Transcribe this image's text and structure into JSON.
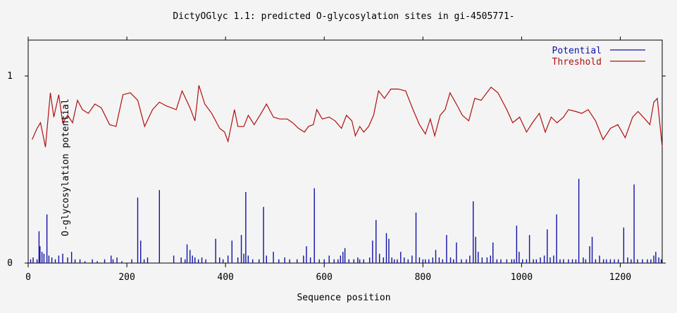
{
  "chart_data": {
    "type": "line",
    "title": "DictyOGlyc 1.1: predicted O-glycosylation sites in gi-4505771-",
    "xlabel": "Sequence position",
    "ylabel": "O-glycosylation potential",
    "xlim": [
      0,
      1285
    ],
    "ylim": [
      0,
      1.2
    ],
    "x_ticks": [
      0,
      200,
      400,
      600,
      800,
      1000,
      1200
    ],
    "x_tick_labels": [
      "0",
      "200",
      "400",
      "600",
      "800",
      "1000",
      "1200"
    ],
    "y_ticks": [
      0,
      1
    ],
    "y_tick_labels": [
      "0",
      "1"
    ],
    "grid": false,
    "legend_position": "top-right",
    "series": [
      {
        "name": "Potential",
        "kind": "impulses",
        "color": "#1010a8",
        "points": [
          [
            5,
            0.02
          ],
          [
            10,
            0.03
          ],
          [
            18,
            0.02
          ],
          [
            22,
            0.17
          ],
          [
            24,
            0.09
          ],
          [
            28,
            0.06
          ],
          [
            32,
            0.05
          ],
          [
            38,
            0.26
          ],
          [
            42,
            0.04
          ],
          [
            48,
            0.03
          ],
          [
            55,
            0.02
          ],
          [
            62,
            0.04
          ],
          [
            70,
            0.05
          ],
          [
            80,
            0.03
          ],
          [
            88,
            0.06
          ],
          [
            95,
            0.02
          ],
          [
            105,
            0.02
          ],
          [
            115,
            0.01
          ],
          [
            130,
            0.02
          ],
          [
            140,
            0.01
          ],
          [
            155,
            0.02
          ],
          [
            168,
            0.04
          ],
          [
            172,
            0.02
          ],
          [
            180,
            0.03
          ],
          [
            190,
            0.01
          ],
          [
            210,
            0.02
          ],
          [
            222,
            0.35
          ],
          [
            228,
            0.12
          ],
          [
            235,
            0.02
          ],
          [
            242,
            0.03
          ],
          [
            266,
            0.39
          ],
          [
            295,
            0.04
          ],
          [
            310,
            0.03
          ],
          [
            318,
            0.02
          ],
          [
            322,
            0.1
          ],
          [
            328,
            0.07
          ],
          [
            333,
            0.04
          ],
          [
            338,
            0.03
          ],
          [
            345,
            0.02
          ],
          [
            352,
            0.03
          ],
          [
            360,
            0.02
          ],
          [
            380,
            0.13
          ],
          [
            388,
            0.03
          ],
          [
            395,
            0.02
          ],
          [
            405,
            0.04
          ],
          [
            413,
            0.12
          ],
          [
            425,
            0.03
          ],
          [
            432,
            0.15
          ],
          [
            437,
            0.05
          ],
          [
            441,
            0.38
          ],
          [
            446,
            0.04
          ],
          [
            455,
            0.02
          ],
          [
            468,
            0.02
          ],
          [
            477,
            0.3
          ],
          [
            483,
            0.04
          ],
          [
            497,
            0.06
          ],
          [
            508,
            0.02
          ],
          [
            520,
            0.03
          ],
          [
            530,
            0.02
          ],
          [
            545,
            0.02
          ],
          [
            558,
            0.04
          ],
          [
            564,
            0.09
          ],
          [
            572,
            0.03
          ],
          [
            580,
            0.4
          ],
          [
            590,
            0.02
          ],
          [
            600,
            0.02
          ],
          [
            610,
            0.04
          ],
          [
            620,
            0.02
          ],
          [
            628,
            0.02
          ],
          [
            633,
            0.04
          ],
          [
            638,
            0.06
          ],
          [
            642,
            0.08
          ],
          [
            650,
            0.02
          ],
          [
            660,
            0.02
          ],
          [
            668,
            0.03
          ],
          [
            672,
            0.02
          ],
          [
            680,
            0.02
          ],
          [
            692,
            0.03
          ],
          [
            698,
            0.12
          ],
          [
            705,
            0.23
          ],
          [
            712,
            0.05
          ],
          [
            720,
            0.03
          ],
          [
            726,
            0.16
          ],
          [
            731,
            0.13
          ],
          [
            737,
            0.03
          ],
          [
            742,
            0.02
          ],
          [
            748,
            0.02
          ],
          [
            755,
            0.06
          ],
          [
            762,
            0.03
          ],
          [
            770,
            0.02
          ],
          [
            778,
            0.04
          ],
          [
            786,
            0.27
          ],
          [
            793,
            0.03
          ],
          [
            800,
            0.02
          ],
          [
            805,
            0.02
          ],
          [
            812,
            0.02
          ],
          [
            820,
            0.03
          ],
          [
            826,
            0.07
          ],
          [
            833,
            0.03
          ],
          [
            840,
            0.02
          ],
          [
            848,
            0.15
          ],
          [
            856,
            0.03
          ],
          [
            862,
            0.02
          ],
          [
            868,
            0.11
          ],
          [
            878,
            0.02
          ],
          [
            888,
            0.02
          ],
          [
            895,
            0.04
          ],
          [
            902,
            0.33
          ],
          [
            907,
            0.14
          ],
          [
            912,
            0.06
          ],
          [
            920,
            0.03
          ],
          [
            930,
            0.03
          ],
          [
            937,
            0.04
          ],
          [
            942,
            0.11
          ],
          [
            950,
            0.02
          ],
          [
            958,
            0.02
          ],
          [
            970,
            0.02
          ],
          [
            980,
            0.02
          ],
          [
            985,
            0.02
          ],
          [
            990,
            0.2
          ],
          [
            995,
            0.06
          ],
          [
            1002,
            0.02
          ],
          [
            1010,
            0.02
          ],
          [
            1016,
            0.15
          ],
          [
            1024,
            0.02
          ],
          [
            1030,
            0.02
          ],
          [
            1038,
            0.03
          ],
          [
            1046,
            0.04
          ],
          [
            1052,
            0.18
          ],
          [
            1058,
            0.03
          ],
          [
            1065,
            0.04
          ],
          [
            1071,
            0.26
          ],
          [
            1078,
            0.02
          ],
          [
            1085,
            0.02
          ],
          [
            1095,
            0.02
          ],
          [
            1103,
            0.02
          ],
          [
            1110,
            0.02
          ],
          [
            1116,
            0.45
          ],
          [
            1125,
            0.03
          ],
          [
            1130,
            0.02
          ],
          [
            1138,
            0.09
          ],
          [
            1143,
            0.14
          ],
          [
            1150,
            0.02
          ],
          [
            1158,
            0.04
          ],
          [
            1166,
            0.02
          ],
          [
            1172,
            0.02
          ],
          [
            1180,
            0.02
          ],
          [
            1188,
            0.02
          ],
          [
            1196,
            0.02
          ],
          [
            1207,
            0.19
          ],
          [
            1215,
            0.03
          ],
          [
            1222,
            0.02
          ],
          [
            1228,
            0.42
          ],
          [
            1235,
            0.02
          ],
          [
            1245,
            0.02
          ],
          [
            1255,
            0.02
          ],
          [
            1262,
            0.02
          ],
          [
            1268,
            0.04
          ],
          [
            1272,
            0.06
          ],
          [
            1278,
            0.03
          ],
          [
            1283,
            0.02
          ]
        ]
      },
      {
        "name": "Threshold",
        "kind": "line",
        "color": "#b01010",
        "points": [
          [
            8,
            0.66
          ],
          [
            18,
            0.72
          ],
          [
            25,
            0.75
          ],
          [
            35,
            0.62
          ],
          [
            45,
            0.91
          ],
          [
            52,
            0.78
          ],
          [
            62,
            0.9
          ],
          [
            70,
            0.75
          ],
          [
            80,
            0.79
          ],
          [
            90,
            0.75
          ],
          [
            100,
            0.87
          ],
          [
            110,
            0.82
          ],
          [
            122,
            0.8
          ],
          [
            135,
            0.85
          ],
          [
            148,
            0.83
          ],
          [
            165,
            0.74
          ],
          [
            178,
            0.73
          ],
          [
            192,
            0.9
          ],
          [
            207,
            0.91
          ],
          [
            222,
            0.87
          ],
          [
            236,
            0.73
          ],
          [
            252,
            0.82
          ],
          [
            266,
            0.86
          ],
          [
            280,
            0.84
          ],
          [
            300,
            0.82
          ],
          [
            312,
            0.92
          ],
          [
            328,
            0.83
          ],
          [
            338,
            0.76
          ],
          [
            342,
            0.85
          ],
          [
            346,
            0.95
          ],
          [
            358,
            0.85
          ],
          [
            372,
            0.8
          ],
          [
            388,
            0.72
          ],
          [
            398,
            0.7
          ],
          [
            405,
            0.65
          ],
          [
            418,
            0.82
          ],
          [
            425,
            0.73
          ],
          [
            437,
            0.73
          ],
          [
            446,
            0.79
          ],
          [
            458,
            0.74
          ],
          [
            472,
            0.8
          ],
          [
            483,
            0.85
          ],
          [
            497,
            0.78
          ],
          [
            510,
            0.77
          ],
          [
            525,
            0.77
          ],
          [
            536,
            0.75
          ],
          [
            548,
            0.72
          ],
          [
            560,
            0.7
          ],
          [
            568,
            0.73
          ],
          [
            578,
            0.74
          ],
          [
            585,
            0.82
          ],
          [
            596,
            0.77
          ],
          [
            610,
            0.78
          ],
          [
            622,
            0.76
          ],
          [
            635,
            0.72
          ],
          [
            645,
            0.79
          ],
          [
            656,
            0.76
          ],
          [
            663,
            0.68
          ],
          [
            672,
            0.73
          ],
          [
            680,
            0.7
          ],
          [
            690,
            0.73
          ],
          [
            700,
            0.79
          ],
          [
            710,
            0.92
          ],
          [
            722,
            0.88
          ],
          [
            735,
            0.93
          ],
          [
            750,
            0.93
          ],
          [
            765,
            0.92
          ],
          [
            780,
            0.82
          ],
          [
            793,
            0.74
          ],
          [
            805,
            0.69
          ],
          [
            815,
            0.77
          ],
          [
            824,
            0.68
          ],
          [
            835,
            0.79
          ],
          [
            845,
            0.82
          ],
          [
            855,
            0.91
          ],
          [
            870,
            0.84
          ],
          [
            880,
            0.79
          ],
          [
            893,
            0.76
          ],
          [
            905,
            0.88
          ],
          [
            918,
            0.87
          ],
          [
            938,
            0.94
          ],
          [
            952,
            0.91
          ],
          [
            970,
            0.82
          ],
          [
            982,
            0.75
          ],
          [
            996,
            0.78
          ],
          [
            1010,
            0.7
          ],
          [
            1022,
            0.75
          ],
          [
            1036,
            0.8
          ],
          [
            1048,
            0.7
          ],
          [
            1060,
            0.78
          ],
          [
            1072,
            0.75
          ],
          [
            1085,
            0.78
          ],
          [
            1095,
            0.82
          ],
          [
            1110,
            0.81
          ],
          [
            1122,
            0.8
          ],
          [
            1135,
            0.82
          ],
          [
            1150,
            0.76
          ],
          [
            1165,
            0.66
          ],
          [
            1180,
            0.72
          ],
          [
            1195,
            0.74
          ],
          [
            1210,
            0.67
          ],
          [
            1225,
            0.78
          ],
          [
            1236,
            0.81
          ],
          [
            1250,
            0.77
          ],
          [
            1260,
            0.74
          ],
          [
            1268,
            0.86
          ],
          [
            1275,
            0.88
          ],
          [
            1285,
            0.62
          ]
        ]
      }
    ]
  }
}
